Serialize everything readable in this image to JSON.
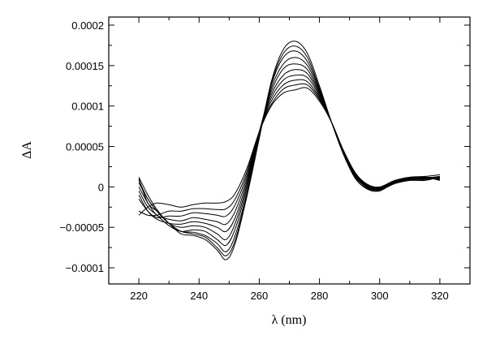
{
  "chart_data": {
    "type": "line",
    "xlabel": "λ (nm)",
    "ylabel": "ΔA",
    "xlim": [
      210,
      330
    ],
    "ylim": [
      -0.00012,
      0.00021
    ],
    "xticks": [
      220,
      240,
      260,
      280,
      300,
      320
    ],
    "yticks": [
      -0.0001,
      -5e-05,
      0,
      5e-05,
      0.0001,
      0.00015,
      0.0002
    ],
    "xtick_labels": [
      "220",
      "240",
      "260",
      "280",
      "300",
      "320"
    ],
    "ytick_labels": [
      "−0.0001",
      "−0.00005",
      "0",
      "0.00005",
      "0.0001",
      "0.00015",
      "0.0002"
    ],
    "x": [
      220,
      223,
      226,
      230,
      234,
      238,
      242,
      246,
      249,
      252,
      256,
      260,
      264,
      268,
      272,
      276,
      280,
      284,
      288,
      292,
      296,
      300,
      305,
      310,
      315,
      320
    ],
    "grid": false,
    "series": [
      {
        "values": [
          1e-05,
          -2e-05,
          -3e-05,
          -4.5e-05,
          -5.8e-05,
          -6e-05,
          -6.5e-05,
          -7.8e-05,
          -9e-05,
          -7e-05,
          -1e-05,
          6e-05,
          0.00013,
          0.00017,
          0.00018,
          0.000165,
          0.000125,
          8e-05,
          4e-05,
          1e-05,
          -3e-06,
          -5e-06,
          5e-06,
          8e-06,
          8e-06,
          1.2e-05
        ]
      },
      {
        "values": [
          5e-06,
          -1.5e-05,
          -3e-05,
          -4.5e-05,
          -5.5e-05,
          -5.8e-05,
          -6.2e-05,
          -7.5e-05,
          -8.5e-05,
          -6.6e-05,
          -8e-06,
          6.2e-05,
          0.000128,
          0.000165,
          0.000174,
          0.00016,
          0.000122,
          8e-05,
          4e-05,
          1e-05,
          -2e-06,
          -4e-06,
          4e-06,
          8e-06,
          9e-06,
          1.1e-05
        ]
      },
      {
        "values": [
          1.2e-05,
          -1e-05,
          -2.8e-05,
          -4.5e-05,
          -5.5e-05,
          -5.6e-05,
          -6e-05,
          -7e-05,
          -8e-05,
          -6e-05,
          -5e-06,
          6.4e-05,
          0.000126,
          0.00016,
          0.000168,
          0.000155,
          0.00012,
          8e-05,
          4.1e-05,
          1e-05,
          -2e-06,
          -4e-06,
          5e-06,
          9e-06,
          1e-05,
          1.2e-05
        ]
      },
      {
        "values": [
          -5e-06,
          -2.5e-05,
          -3.5e-05,
          -4.8e-05,
          -5.5e-05,
          -5.3e-05,
          -5.5e-05,
          -6.5e-05,
          -7.2e-05,
          -5.2e-05,
          0.0,
          6.6e-05,
          0.000122,
          0.000152,
          0.00016,
          0.00015,
          0.000118,
          8e-05,
          4.2e-05,
          1.2e-05,
          -1e-06,
          -3e-06,
          5e-06,
          9e-06,
          1e-05,
          1e-05
        ]
      },
      {
        "values": [
          8e-06,
          -1.5e-05,
          -3e-05,
          -4.5e-05,
          -5e-05,
          -4.8e-05,
          -5e-05,
          -5.8e-05,
          -6.5e-05,
          -4.5e-05,
          4e-06,
          6.8e-05,
          0.000118,
          0.000146,
          0.000152,
          0.000145,
          0.000116,
          8e-05,
          4.2e-05,
          1.2e-05,
          0.0,
          -3e-06,
          5e-06,
          1e-05,
          1.1e-05,
          1.3e-05
        ]
      },
      {
        "values": [
          -1e-05,
          -3e-05,
          -4e-05,
          -4.5e-05,
          -4.6e-05,
          -4.3e-05,
          -4.5e-05,
          -5e-05,
          -5.5e-05,
          -3.8e-05,
          8e-06,
          6.8e-05,
          0.000114,
          0.000138,
          0.000145,
          0.00014,
          0.000114,
          8e-05,
          4.3e-05,
          1.3e-05,
          1e-06,
          -2e-06,
          6e-06,
          1e-05,
          1.1e-05,
          9e-06
        ]
      },
      {
        "values": [
          0.0,
          -2e-05,
          -3.5e-05,
          -4e-05,
          -4.2e-05,
          -3.8e-05,
          -4e-05,
          -4.3e-05,
          -4.6e-05,
          -3e-05,
          1.2e-05,
          6.8e-05,
          0.00011,
          0.000132,
          0.000138,
          0.000135,
          0.000112,
          8e-05,
          4.3e-05,
          1.4e-05,
          1e-06,
          -2e-06,
          6e-06,
          1e-05,
          1.2e-05,
          1.1e-05
        ]
      },
      {
        "values": [
          -1.5e-05,
          -3e-05,
          -3.8e-05,
          -3.6e-05,
          -3.6e-05,
          -3.2e-05,
          -3.3e-05,
          -3.5e-05,
          -3.6e-05,
          -2.2e-05,
          1.6e-05,
          6.8e-05,
          0.000106,
          0.000126,
          0.000132,
          0.00013,
          0.00011,
          8e-05,
          4.4e-05,
          1.5e-05,
          2e-06,
          -1e-06,
          7e-06,
          1.1e-05,
          1.2e-05,
          8e-06
        ]
      },
      {
        "values": [
          -3e-05,
          -3.5e-05,
          -3.5e-05,
          -3e-05,
          -3e-05,
          -2.7e-05,
          -2.7e-05,
          -2.8e-05,
          -2.7e-05,
          -1.5e-05,
          2e-05,
          6.8e-05,
          0.000102,
          0.000121,
          0.000126,
          0.000126,
          0.000108,
          8e-05,
          4.4e-05,
          1.6e-05,
          2e-06,
          -1e-06,
          7e-06,
          1.1e-05,
          1.2e-05,
          1e-05
        ]
      },
      {
        "values": [
          -3.5e-05,
          -2.5e-05,
          -2e-05,
          -2.2e-05,
          -2.5e-05,
          -2.2e-05,
          -2e-05,
          -2e-05,
          -1.8e-05,
          -8e-06,
          2.4e-05,
          6.8e-05,
          0.0001,
          0.000116,
          0.00012,
          0.000122,
          0.000106,
          8e-05,
          4.5e-05,
          1.7e-05,
          3e-06,
          0.0,
          8e-06,
          1.2e-05,
          1.3e-05,
          1.5e-05
        ]
      }
    ]
  }
}
